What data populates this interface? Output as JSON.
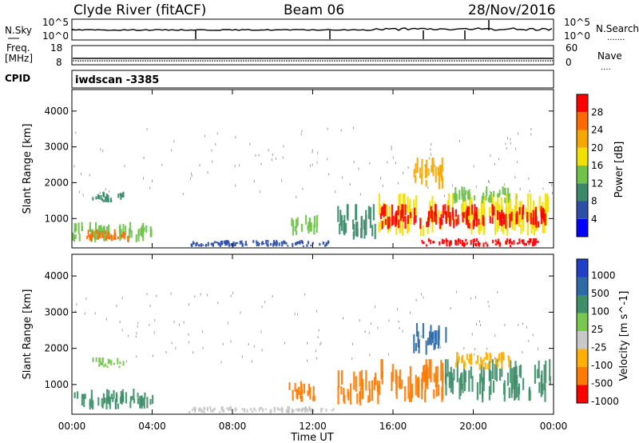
{
  "header": {
    "title": "Clyde River (fitACF)",
    "beam": "Beam 06",
    "date": "28/Nov/2016"
  },
  "status_panels": {
    "nsky_label": "N.Sky",
    "nsearch_label": "N.Search",
    "nsky_ticks": [
      "10^5",
      "10^0"
    ],
    "freq_label": "Freq.",
    "freq_unit": "[MHz]",
    "freq_ticks": [
      "18",
      "8"
    ],
    "nave_label": "Nave",
    "nave_ticks": [
      "60",
      "0"
    ],
    "cpid_label": "CPID",
    "cpid_value": "iwdscan -3385"
  },
  "chart_data": [
    {
      "type": "heatmap",
      "name": "power",
      "ylabel": "Slant Range [km]",
      "xlabel": "",
      "x_ticks": [
        "00:00",
        "04:00",
        "08:00",
        "12:00",
        "16:00",
        "20:00",
        "00:00"
      ],
      "x_range_hours": [
        0,
        24
      ],
      "y_ticks": [
        1000,
        2000,
        3000,
        4000
      ],
      "ylim": [
        180,
        4600
      ],
      "colorbar": {
        "label": "Power [dB]",
        "ticks": [
          "4",
          "8",
          "12",
          "16",
          "20",
          "24",
          "28"
        ],
        "range": [
          0,
          32
        ],
        "colors": [
          "#0000ff",
          "#2b4fa8",
          "#3a8a6a",
          "#6fc24a",
          "#f2e000",
          "#f7a800",
          "#ff6a00",
          "#ff0000"
        ]
      },
      "regions": [
        {
          "t": [
            0.0,
            4.0
          ],
          "r": [
            300,
            900
          ],
          "value": 14
        },
        {
          "t": [
            0.6,
            2.8
          ],
          "r": [
            350,
            700
          ],
          "value": 24
        },
        {
          "t": [
            1.0,
            2.6
          ],
          "r": [
            1450,
            1750
          ],
          "value": 8
        },
        {
          "t": [
            5.8,
            13.0
          ],
          "r": [
            200,
            400
          ],
          "value": 6
        },
        {
          "t": [
            10.8,
            12.2
          ],
          "r": [
            500,
            1100
          ],
          "value": 14
        },
        {
          "t": [
            13.2,
            15.3
          ],
          "r": [
            400,
            1400
          ],
          "value": 10
        },
        {
          "t": [
            15.2,
            23.8
          ],
          "r": [
            500,
            1700
          ],
          "value": 16
        },
        {
          "t": [
            15.3,
            23.6
          ],
          "r": [
            700,
            1400
          ],
          "value": 28
        },
        {
          "t": [
            17.0,
            18.6
          ],
          "r": [
            1800,
            2700
          ],
          "value": 20
        },
        {
          "t": [
            19.0,
            21.8
          ],
          "r": [
            1400,
            1900
          ],
          "value": 14
        },
        {
          "t": [
            17.4,
            23.2
          ],
          "r": [
            200,
            450
          ],
          "value": 28
        }
      ]
    },
    {
      "type": "heatmap",
      "name": "velocity",
      "ylabel": "Slant Range [km]",
      "xlabel": "Time UT",
      "x_ticks": [
        "00:00",
        "04:00",
        "08:00",
        "12:00",
        "16:00",
        "20:00",
        "00:00"
      ],
      "x_range_hours": [
        0,
        24
      ],
      "y_ticks": [
        1000,
        2000,
        3000,
        4000
      ],
      "ylim": [
        180,
        4600
      ],
      "colorbar": {
        "label": "Velocity [m s^-1]",
        "ticks": [
          "1000",
          "500",
          "100",
          "25",
          "-25",
          "-100",
          "-500",
          "-1000"
        ],
        "colors": [
          "#2040c8",
          "#2e6aa8",
          "#3f8f6a",
          "#78c850",
          "#c8c8c8",
          "#ffb000",
          "#ff7a00",
          "#ff0000"
        ]
      },
      "regions": [
        {
          "t": [
            0.0,
            4.0
          ],
          "r": [
            300,
            900
          ],
          "class": 2
        },
        {
          "t": [
            1.0,
            2.6
          ],
          "r": [
            1450,
            1750
          ],
          "class": 3
        },
        {
          "t": [
            5.8,
            13.0
          ],
          "r": [
            200,
            400
          ],
          "class": 4
        },
        {
          "t": [
            10.8,
            12.2
          ],
          "r": [
            500,
            1100
          ],
          "class": 6
        },
        {
          "t": [
            13.2,
            15.3
          ],
          "r": [
            400,
            1400
          ],
          "class": 6
        },
        {
          "t": [
            15.2,
            18.5
          ],
          "r": [
            500,
            1700
          ],
          "class": 6
        },
        {
          "t": [
            18.5,
            23.8
          ],
          "r": [
            500,
            1700
          ],
          "class": 2
        },
        {
          "t": [
            17.0,
            18.6
          ],
          "r": [
            1800,
            2700
          ],
          "class": 1
        },
        {
          "t": [
            19.0,
            21.8
          ],
          "r": [
            1400,
            1900
          ],
          "class": 5
        }
      ]
    }
  ]
}
